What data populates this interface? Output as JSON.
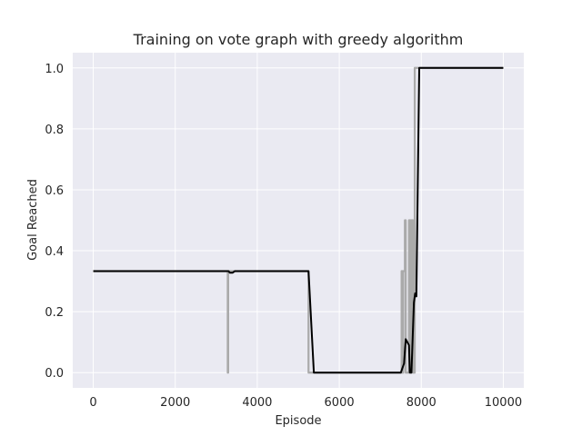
{
  "chart_data": {
    "type": "line",
    "title": "Training on vote graph with greedy algorithm",
    "xlabel": "Episode",
    "ylabel": "Goal Reached",
    "xlim": [
      -500,
      10500
    ],
    "ylim": [
      -0.05,
      1.05
    ],
    "xticks": [
      0,
      2000,
      4000,
      6000,
      8000,
      10000
    ],
    "yticks": [
      0.0,
      0.2,
      0.4,
      0.6,
      0.8,
      1.0
    ],
    "xtick_labels": [
      "0",
      "2000",
      "4000",
      "6000",
      "8000",
      "10000"
    ],
    "ytick_labels": [
      "0.0",
      "0.2",
      "0.4",
      "0.6",
      "0.8",
      "1.0"
    ],
    "grid": true,
    "background": "#eaeaf2",
    "series": [
      {
        "color": "#aaaaaa",
        "x": [
          0,
          3280,
          3280,
          3290,
          3290,
          5250,
          5250,
          5260,
          5260,
          7520,
          7520,
          7540,
          7540,
          7560,
          7560,
          7600,
          7600,
          7620,
          7620,
          7700,
          7700,
          7740,
          7740,
          7760,
          7760,
          7800,
          7800,
          7840,
          7840,
          7860,
          7860,
          10000
        ],
        "y": [
          0.333,
          0.333,
          0.0,
          0.0,
          0.333,
          0.333,
          0.0,
          0.0,
          0.0,
          0.0,
          0.333,
          0.333,
          0.0,
          0.0,
          0.333,
          0.333,
          0.5,
          0.5,
          0.0,
          0.0,
          0.5,
          0.5,
          0.0,
          0.0,
          0.5,
          0.5,
          0.0,
          0.0,
          1.0,
          1.0,
          1.0,
          1.0
        ]
      },
      {
        "color": "#000000",
        "x": [
          0,
          3300,
          3330,
          3400,
          3450,
          5250,
          5380,
          7500,
          7580,
          7620,
          7700,
          7720,
          7760,
          7820,
          7850,
          7880,
          7950,
          10000
        ],
        "y": [
          0.333,
          0.333,
          0.328,
          0.328,
          0.333,
          0.333,
          0.0,
          0.0,
          0.03,
          0.11,
          0.09,
          0.0,
          0.0,
          0.23,
          0.26,
          0.25,
          1.0,
          1.0
        ]
      }
    ]
  }
}
